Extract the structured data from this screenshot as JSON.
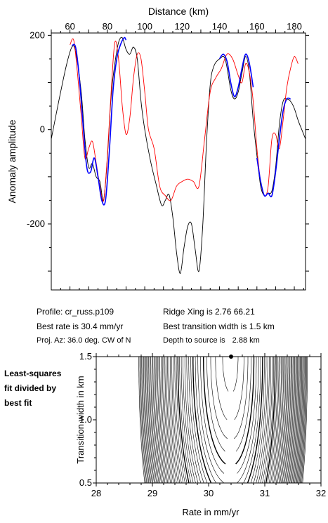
{
  "info": {
    "profile": "Profile: cr_russ.p109",
    "best_rate": "Best rate is 30.4 mm/yr",
    "proj_az": "Proj. Az: 36.0 deg. CW of N",
    "ridge_xing": "Ridge Xing is 2.76 66.21",
    "best_width": "Best transition width is 1.5 km",
    "depth_label": "Depth to source is",
    "depth_value": "2.88 km"
  },
  "side_label": [
    "Least-squares",
    "fit divided by",
    "best fit"
  ],
  "chart_data": [
    {
      "type": "line",
      "xlabel": "Distance (km)",
      "ylabel": "Anomaly amplitude",
      "xlim": [
        50,
        186
      ],
      "ylim": [
        -340,
        205
      ],
      "x_ticks": [
        60,
        80,
        100,
        120,
        140,
        160,
        180
      ],
      "y_ticks": [
        200,
        0,
        -200
      ],
      "colors": {
        "observed": "#000000",
        "model": "#ff0000",
        "fit_window": "#0000ff"
      },
      "series": [
        {
          "role": "observed",
          "x": [
            50,
            54,
            58,
            61,
            63,
            66,
            68,
            70,
            72,
            74,
            76,
            78,
            80,
            82,
            84,
            86,
            88,
            90,
            92,
            94,
            96,
            98,
            100,
            103,
            106,
            109,
            111,
            113,
            115,
            117,
            119,
            121,
            123,
            125,
            127,
            129,
            131,
            133,
            135,
            137,
            140,
            143,
            146,
            148,
            150,
            152,
            154,
            156,
            158,
            160,
            162,
            164,
            166,
            168,
            170,
            172,
            174,
            176,
            178,
            180,
            182,
            184,
            186
          ],
          "y": [
            -20,
            60,
            135,
            175,
            165,
            80,
            -20,
            -80,
            -72,
            -100,
            -110,
            -150,
            -60,
            70,
            140,
            185,
            195,
            170,
            160,
            175,
            150,
            60,
            0,
            -65,
            -115,
            -160,
            -150,
            -138,
            -185,
            -260,
            -305,
            -250,
            -205,
            -200,
            -255,
            -300,
            -205,
            -30,
            95,
            135,
            150,
            150,
            85,
            65,
            80,
            120,
            155,
            120,
            20,
            -55,
            -120,
            -140,
            -135,
            -130,
            -80,
            10,
            60,
            65,
            60,
            45,
            20,
            0,
            -20
          ]
        },
        {
          "role": "model",
          "x": [
            60,
            62,
            64,
            66,
            68,
            70,
            72,
            74,
            76,
            78,
            80,
            82,
            84,
            86,
            88,
            90,
            92,
            94,
            96,
            98,
            100,
            102,
            105,
            108,
            111,
            114,
            117,
            120,
            123,
            126,
            129,
            132,
            135,
            138,
            141,
            144,
            147,
            150,
            152,
            154,
            156,
            158,
            160,
            162,
            164,
            166,
            168,
            170,
            172,
            174,
            176,
            178,
            180,
            182
          ],
          "y": [
            180,
            190,
            120,
            30,
            -60,
            -40,
            -25,
            -70,
            -120,
            -150,
            -55,
            80,
            185,
            150,
            50,
            -10,
            25,
            110,
            160,
            150,
            80,
            0,
            -40,
            -120,
            -140,
            -150,
            -120,
            -110,
            -105,
            -110,
            -120,
            -20,
            80,
            110,
            130,
            160,
            150,
            115,
            100,
            140,
            120,
            60,
            -40,
            -110,
            -140,
            -120,
            -20,
            -10,
            -40,
            20,
            90,
            130,
            155,
            140
          ]
        },
        {
          "role": "fit_window",
          "x": [
            61,
            63,
            65,
            67,
            69,
            71,
            73,
            75,
            77,
            79,
            81,
            83,
            85,
            87,
            89,
            90
          ],
          "y": [
            178,
            175,
            110,
            10,
            -80,
            -90,
            -60,
            -100,
            -150,
            -150,
            -50,
            80,
            150,
            180,
            195,
            190
          ]
        },
        {
          "role": "fit_window",
          "x": [
            140,
            142,
            144,
            146,
            148,
            150,
            152,
            154,
            156,
            158
          ],
          "y": [
            150,
            160,
            145,
            100,
            70,
            90,
            130,
            160,
            140,
            90
          ]
        },
        {
          "role": "fit_window",
          "x": [
            160,
            162,
            164,
            166,
            168,
            170,
            172,
            174,
            176,
            178
          ],
          "y": [
            -60,
            -110,
            -140,
            -135,
            -140,
            -90,
            -20,
            40,
            65,
            65
          ]
        }
      ]
    },
    {
      "type": "contour",
      "xlabel": "Rate in mm/yr",
      "ylabel": "Transition width in km",
      "xlim": [
        28,
        32
      ],
      "ylim": [
        0.5,
        1.5
      ],
      "x_ticks": [
        28,
        29,
        30,
        31,
        32
      ],
      "y_ticks": [
        0.5,
        1.0,
        1.5
      ],
      "best_fit": {
        "x": 30.4,
        "y": 1.5
      },
      "contour_levels_bold": [
        1.5,
        2.0,
        3.0
      ]
    }
  ]
}
